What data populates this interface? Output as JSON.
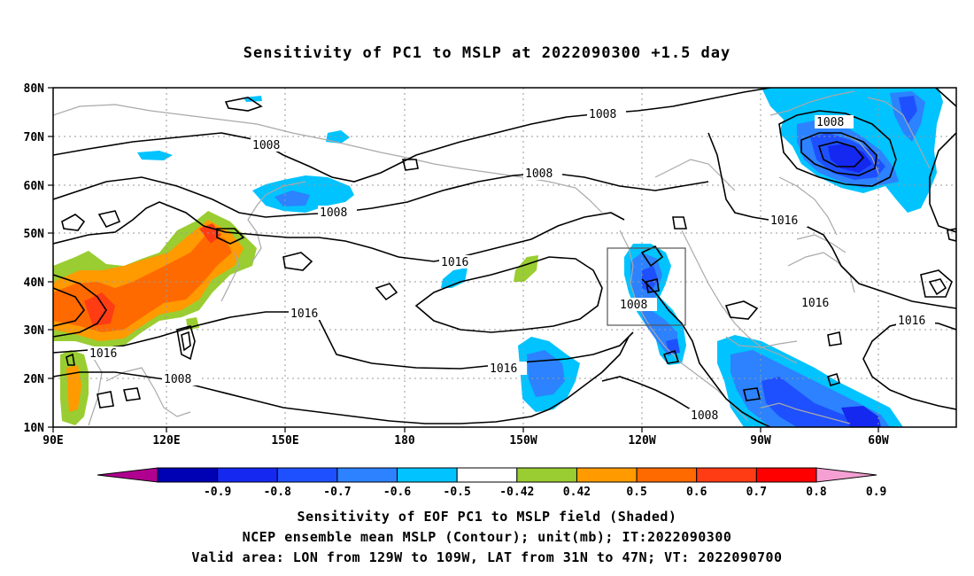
{
  "title": "Sensitivity of PC1 to MSLP at 2022090300 +1.5 day",
  "axes": {
    "lat_labels": [
      "80N",
      "70N",
      "60N",
      "50N",
      "40N",
      "30N",
      "20N",
      "10N"
    ],
    "lon_labels": [
      "90E",
      "120E",
      "150E",
      "180",
      "150W",
      "120W",
      "90W",
      "60W"
    ]
  },
  "contour_labels": [
    {
      "text": "1008"
    },
    {
      "text": "1008"
    },
    {
      "text": "1008"
    },
    {
      "text": "1008"
    },
    {
      "text": "1008"
    },
    {
      "text": "1008"
    },
    {
      "text": "1008"
    },
    {
      "text": "1016"
    },
    {
      "text": "1016"
    },
    {
      "text": "1016"
    },
    {
      "text": "1016"
    },
    {
      "text": "1016"
    },
    {
      "text": "1016"
    },
    {
      "text": "1016"
    }
  ],
  "colorbar": {
    "labels": [
      "-0.9",
      "-0.8",
      "-0.7",
      "-0.6",
      "-0.5",
      "-0.42",
      "0.42",
      "0.5",
      "0.6",
      "0.7",
      "0.8",
      "0.9"
    ],
    "colors": [
      "#b00090",
      "#0000b4",
      "#1428f0",
      "#1e50ff",
      "#2c82ff",
      "#00c3ff",
      "#ffffff",
      "#9acd32",
      "#ff9a00",
      "#ff6a00",
      "#ff3c14",
      "#ff0000",
      "#f5a0d2"
    ]
  },
  "captions": [
    "Sensitivity of EOF PC1 to MSLP field (Shaded)",
    "NCEP ensemble mean MSLP (Contour); unit(mb); IT:2022090300",
    "Valid area: LON from 129W to 109W, LAT from 31N to 47N; VT: 2022090700"
  ]
}
